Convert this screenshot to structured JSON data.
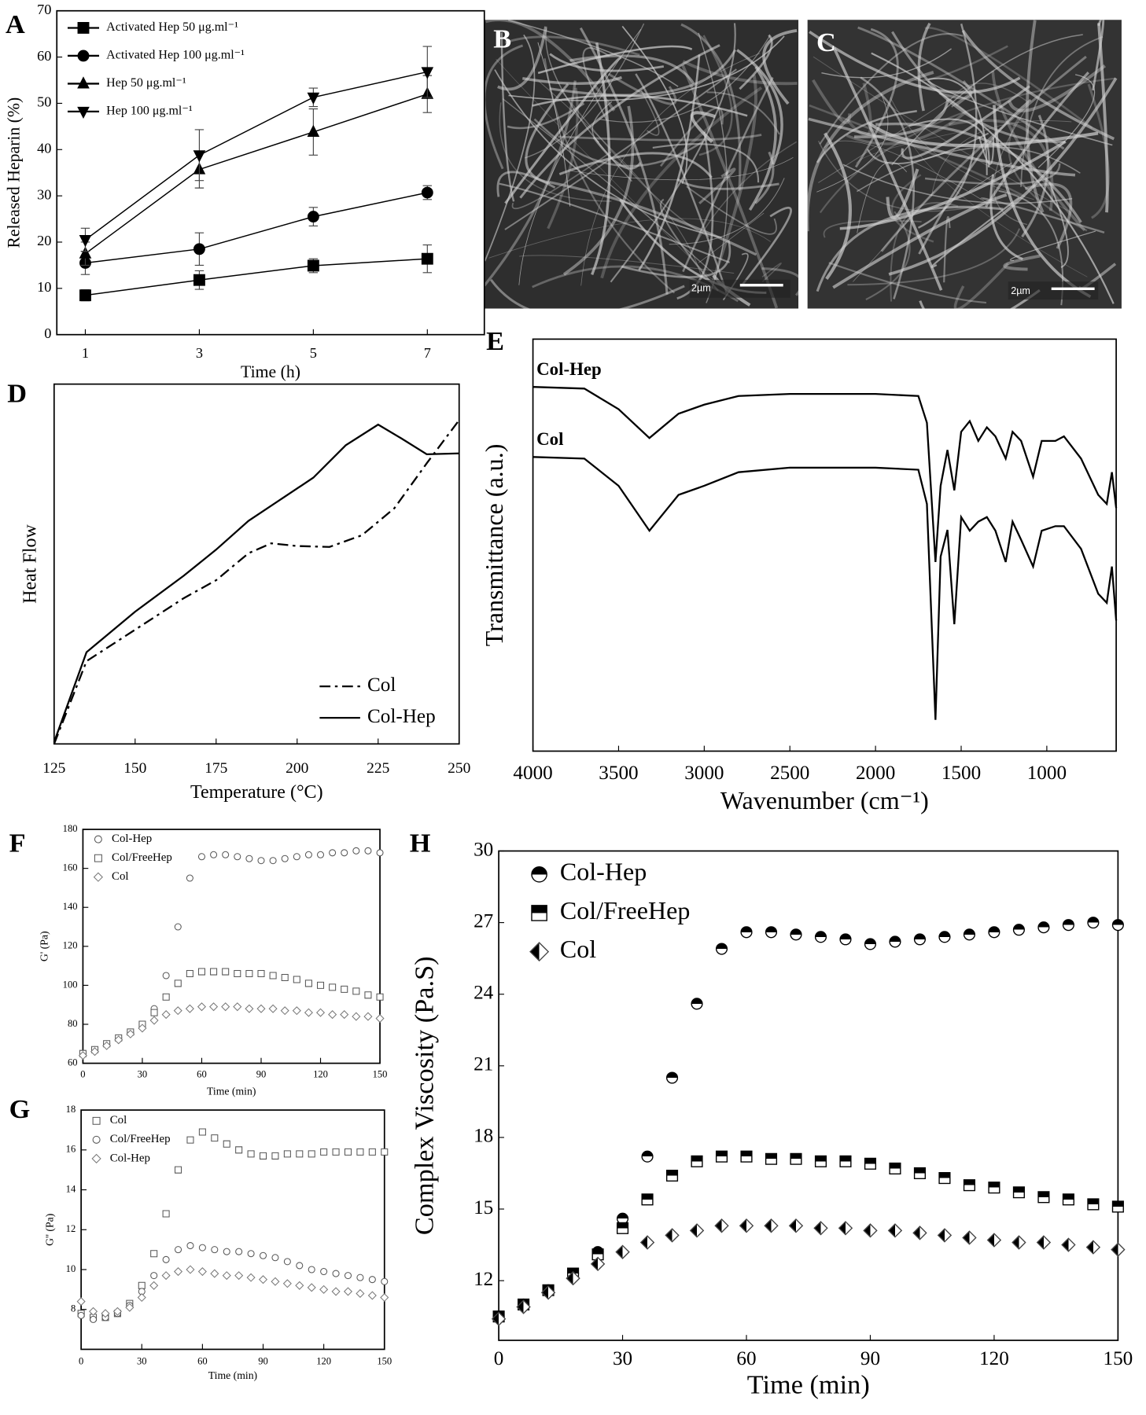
{
  "chart_data": [
    {
      "type": "line",
      "panel": "A",
      "xlabel": "Time (h)",
      "ylabel": "Released Heparin (%)",
      "x": [
        1,
        3,
        5,
        7
      ],
      "xlim": [
        0.5,
        8
      ],
      "xticks": [
        1,
        3,
        5,
        7
      ],
      "ylim": [
        0,
        70
      ],
      "yticks": [
        0,
        10,
        20,
        30,
        40,
        50,
        60,
        70
      ],
      "legend": "upper left",
      "marker_fill": "filled",
      "series": [
        {
          "name": "Activated Hep 50 μg.ml⁻¹",
          "color": "#000000",
          "marker": "square",
          "values": [
            8.5,
            11.8,
            14.9,
            16.4
          ],
          "errors": [
            1.2,
            2,
            1.5,
            3
          ]
        },
        {
          "name": "Activated Hep 100 μg.ml⁻¹",
          "color": "#000000",
          "marker": "circle",
          "values": [
            15.5,
            18.5,
            25.5,
            30.7
          ],
          "errors": [
            2.5,
            3.5,
            2,
            1.5
          ]
        },
        {
          "name": "Hep 50 μg.ml⁻¹",
          "color": "#000000",
          "marker": "triangle-up",
          "values": [
            17.5,
            35.7,
            43.8,
            52
          ],
          "errors": [
            2.5,
            4,
            5,
            4
          ]
        },
        {
          "name": "Hep 100 μg.ml⁻¹",
          "color": "#000000",
          "marker": "triangle-down",
          "values": [
            20.5,
            38.8,
            51.3,
            56.8
          ],
          "errors": [
            2.5,
            5.5,
            2,
            5.5
          ]
        }
      ]
    },
    {
      "type": "line",
      "panel": "D",
      "xlabel": "Temperature (°C)",
      "ylabel": "Heat Flow",
      "xlim": [
        125,
        250
      ],
      "xticks": [
        125,
        150,
        175,
        200,
        225,
        250
      ],
      "ylim": [
        0,
        100
      ],
      "legend": "lower right",
      "series": [
        {
          "name": "Col",
          "color": "#000000",
          "dash": "dashdot",
          "x": [
            125,
            135,
            150,
            165,
            175,
            185,
            192,
            200,
            210,
            220,
            230,
            240,
            250
          ],
          "values": [
            0,
            23,
            31.75,
            40.5,
            45.5,
            53,
            55.75,
            55,
            54.75,
            58,
            65.5,
            78,
            90
          ]
        },
        {
          "name": "Col-Hep",
          "color": "#000000",
          "dash": "solid",
          "x": [
            125,
            135,
            150,
            165,
            175,
            185,
            195,
            205,
            215,
            225,
            232,
            240,
            250
          ],
          "values": [
            0.5,
            25.5,
            36.75,
            46.75,
            54,
            62,
            68,
            74,
            83,
            88.75,
            85,
            80.5,
            80.75
          ]
        }
      ]
    },
    {
      "type": "line",
      "panel": "E",
      "xlabel": "Wavenumber (cm⁻¹)",
      "ylabel": "Transmittance (a.u.)",
      "xlim": [
        4000,
        595
      ],
      "xticks": [
        4000,
        3500,
        3000,
        2500,
        2000,
        1500,
        1000
      ],
      "ylim": [
        0,
        100
      ],
      "legend": "inline",
      "x": [
        4000,
        3700,
        3500,
        3320,
        3150,
        3000,
        2800,
        2500,
        2000,
        1750,
        1700,
        1650,
        1620,
        1580,
        1540,
        1500,
        1450,
        1400,
        1350,
        1300,
        1240,
        1200,
        1150,
        1080,
        1030,
        950,
        900,
        800,
        700,
        650,
        620,
        595
      ],
      "series": [
        {
          "name": "Col-Hep",
          "color": "#000000",
          "dash": "solid",
          "values": [
            88.4,
            88.0,
            83.0,
            76.0,
            81.9,
            84.1,
            86.2,
            86.7,
            86.7,
            86.2,
            79.7,
            45.9,
            64.4,
            73.1,
            63.3,
            77.5,
            80.1,
            75.3,
            78.6,
            76.4,
            71.0,
            77.5,
            75.3,
            66.6,
            75.3,
            75.3,
            76.4,
            71.0,
            62.2,
            60.0,
            67.7,
            59.0
          ]
        },
        {
          "name": "Col",
          "color": "#000000",
          "dash": "solid",
          "values": [
            71.4,
            71.0,
            64.4,
            53.5,
            62.2,
            64.4,
            67.7,
            68.8,
            68.8,
            68.3,
            60.0,
            7.6,
            47.2,
            53.7,
            30.8,
            56.8,
            53.5,
            55.7,
            56.8,
            53.5,
            45.9,
            55.7,
            51.3,
            44.8,
            53.5,
            54.6,
            54.6,
            49.1,
            38.2,
            36.0,
            44.8,
            31.7
          ]
        }
      ]
    },
    {
      "type": "scatter",
      "panel": "F",
      "xlabel": "Time (min)",
      "ylabel": "G' (Pa)",
      "x": [
        0,
        6,
        12,
        18,
        24,
        30,
        36,
        42,
        48,
        54,
        60,
        66,
        72,
        78,
        84,
        90,
        96,
        102,
        108,
        114,
        120,
        126,
        132,
        138,
        144,
        150
      ],
      "xlim": [
        0,
        150
      ],
      "xticks": [
        0,
        30,
        60,
        90,
        120,
        150
      ],
      "ylim": [
        60,
        180
      ],
      "yticks": [
        60,
        80,
        100,
        120,
        140,
        160,
        180
      ],
      "legend": "upper left",
      "marker_fill": "open",
      "series": [
        {
          "name": "Col-Hep",
          "color": "#555555",
          "marker": "circle",
          "values": [
            65,
            67,
            70,
            73,
            76,
            80,
            88,
            105,
            130,
            155,
            166,
            167,
            167,
            166,
            165,
            164,
            164,
            165,
            166,
            167,
            167,
            168,
            168,
            169,
            169,
            168
          ]
        },
        {
          "name": "Col/FreeHep",
          "color": "#555555",
          "marker": "square",
          "values": [
            65,
            67,
            70,
            73,
            76,
            80,
            86,
            94,
            101,
            106,
            107,
            107,
            107,
            106,
            106,
            106,
            105,
            104,
            103,
            101,
            100,
            99,
            98,
            97,
            95,
            94
          ]
        },
        {
          "name": "Col",
          "color": "#777777",
          "marker": "diamond",
          "values": [
            64,
            66,
            69,
            72,
            75,
            78,
            82,
            85,
            87,
            88,
            89,
            89,
            89,
            89,
            88,
            88,
            88,
            87,
            87,
            86,
            86,
            85,
            85,
            84,
            84,
            83
          ]
        }
      ]
    },
    {
      "type": "scatter",
      "panel": "G",
      "xlabel": "Time (min)",
      "ylabel": "G'' (Pa)",
      "x": [
        0,
        6,
        12,
        18,
        24,
        30,
        36,
        42,
        48,
        54,
        60,
        66,
        72,
        78,
        84,
        90,
        96,
        102,
        108,
        114,
        120,
        126,
        132,
        138,
        144,
        150
      ],
      "xlim": [
        0,
        150
      ],
      "xticks": [
        0,
        30,
        60,
        90,
        120,
        150
      ],
      "ylim": [
        6,
        18
      ],
      "yticks": [
        8,
        10,
        12,
        14,
        16,
        18
      ],
      "legend": "upper left",
      "marker_fill": "open",
      "series": [
        {
          "name": "Col",
          "color": "#555555",
          "marker": "square",
          "values": [
            7.8,
            7.6,
            7.6,
            7.8,
            8.3,
            9.2,
            10.8,
            12.8,
            15.0,
            16.5,
            16.9,
            16.6,
            16.3,
            16.0,
            15.8,
            15.7,
            15.7,
            15.8,
            15.8,
            15.8,
            15.9,
            15.9,
            15.9,
            15.9,
            15.9,
            15.9
          ]
        },
        {
          "name": "Col/FreeHep",
          "color": "#555555",
          "marker": "circle",
          "values": [
            7.7,
            7.5,
            7.6,
            7.8,
            8.2,
            8.9,
            9.7,
            10.5,
            11.0,
            11.2,
            11.1,
            11.0,
            10.9,
            10.9,
            10.8,
            10.7,
            10.6,
            10.4,
            10.2,
            10.0,
            9.9,
            9.8,
            9.7,
            9.6,
            9.5,
            9.4
          ]
        },
        {
          "name": "Col-Hep",
          "color": "#777777",
          "marker": "diamond",
          "values": [
            8.4,
            7.9,
            7.8,
            7.9,
            8.1,
            8.6,
            9.2,
            9.7,
            9.9,
            10.0,
            9.9,
            9.8,
            9.7,
            9.7,
            9.6,
            9.5,
            9.4,
            9.3,
            9.2,
            9.1,
            9.0,
            8.9,
            8.9,
            8.8,
            8.7,
            8.6
          ]
        }
      ]
    },
    {
      "type": "scatter",
      "panel": "H",
      "xlabel": "Time (min)",
      "ylabel": "Complex Viscosity (Pa.S)",
      "x": [
        0,
        6,
        12,
        18,
        24,
        30,
        36,
        42,
        48,
        54,
        60,
        66,
        72,
        78,
        84,
        90,
        96,
        102,
        108,
        114,
        120,
        126,
        132,
        138,
        144,
        150
      ],
      "xlim": [
        0,
        150
      ],
      "xticks": [
        0,
        30,
        60,
        90,
        120,
        150
      ],
      "ylim": [
        9.5,
        30
      ],
      "yticks": [
        12,
        15,
        18,
        21,
        24,
        27,
        30
      ],
      "legend": "upper left",
      "marker_fill": "half",
      "series": [
        {
          "name": "Col-Hep",
          "color": "#000000",
          "marker": "circle",
          "values": [
            10.5,
            11.0,
            11.6,
            12.3,
            13.2,
            14.6,
            17.2,
            20.5,
            23.6,
            25.9,
            26.6,
            26.6,
            26.5,
            26.4,
            26.3,
            26.1,
            26.2,
            26.3,
            26.4,
            26.5,
            26.6,
            26.7,
            26.8,
            26.9,
            27.0,
            26.9
          ]
        },
        {
          "name": "Col/FreeHep",
          "color": "#000000",
          "marker": "square",
          "values": [
            10.5,
            11.0,
            11.6,
            12.3,
            13.1,
            14.2,
            15.4,
            16.4,
            17.0,
            17.2,
            17.2,
            17.1,
            17.1,
            17.0,
            17.0,
            16.9,
            16.7,
            16.5,
            16.3,
            16.0,
            15.9,
            15.7,
            15.5,
            15.4,
            15.2,
            15.1
          ]
        },
        {
          "name": "Col",
          "color": "#444444",
          "marker": "diamond",
          "values": [
            10.4,
            10.9,
            11.5,
            12.1,
            12.7,
            13.2,
            13.6,
            13.9,
            14.1,
            14.3,
            14.3,
            14.3,
            14.3,
            14.2,
            14.2,
            14.1,
            14.1,
            14.0,
            13.9,
            13.8,
            13.7,
            13.6,
            13.6,
            13.5,
            13.4,
            13.3
          ]
        }
      ]
    }
  ],
  "images": [
    {
      "panel": "B",
      "scale": "2µm"
    },
    {
      "panel": "C",
      "scale": "2µm"
    }
  ]
}
